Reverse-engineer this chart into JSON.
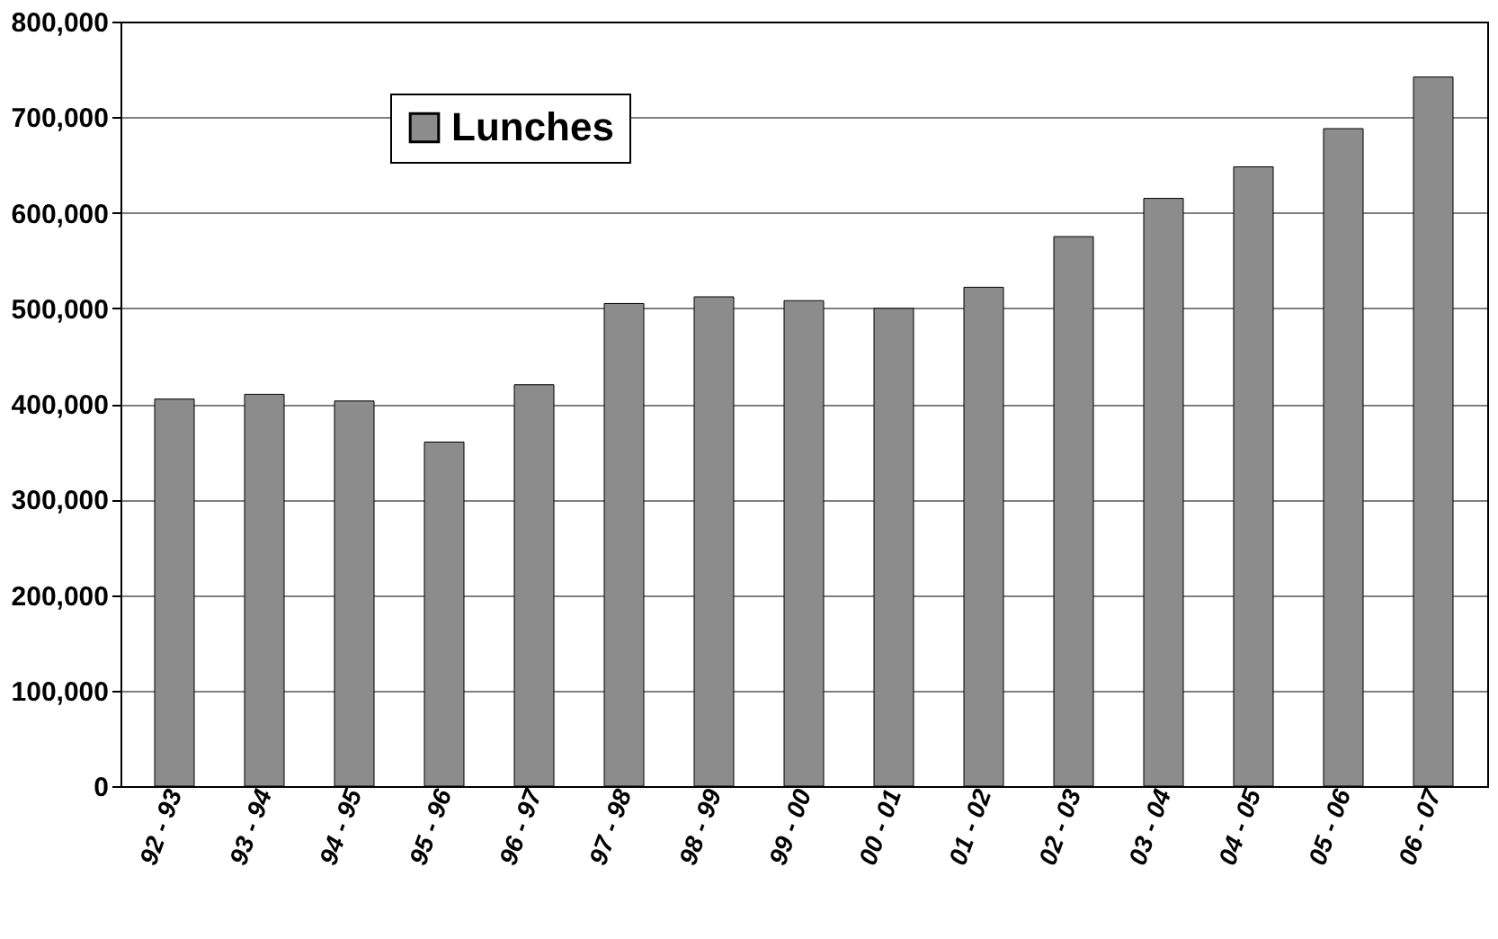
{
  "chart_data": {
    "type": "bar",
    "categories": [
      "92 - 93",
      "93 - 94",
      "94 - 95",
      "95 - 96",
      "96 - 97",
      "97 - 98",
      "98 - 99",
      "99 - 00",
      "00 - 01",
      "01 - 02",
      "02 - 03",
      "03 - 04",
      "04 - 05",
      "05 - 06",
      "06 - 07"
    ],
    "series": [
      {
        "name": "Lunches",
        "color": "#8c8c8c",
        "values": [
          405000,
          410000,
          403000,
          360000,
          420000,
          505000,
          512000,
          508000,
          500000,
          522000,
          575000,
          615000,
          648000,
          688000,
          742000
        ]
      }
    ],
    "ylim": [
      0,
      800000
    ],
    "yticks": [
      0,
      {
        "value": 100000,
        "label": "100,000"
      },
      {
        "value": 200000,
        "label": "200,000"
      },
      {
        "value": 300000,
        "label": "300,000"
      },
      {
        "value": 400000,
        "label": "400,000"
      },
      {
        "value": 500000,
        "label": "500,000"
      },
      {
        "value": 600000,
        "label": "600,000"
      },
      {
        "value": 700000,
        "label": "700,000"
      },
      {
        "value": 800000,
        "label": "800,000"
      }
    ],
    "grid": "y",
    "legend": "top left"
  }
}
